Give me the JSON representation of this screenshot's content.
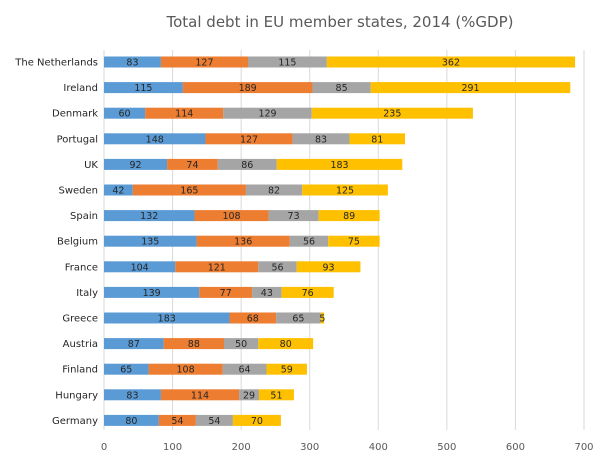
{
  "chart_data": {
    "type": "bar",
    "orientation": "horizontal",
    "stacked": true,
    "title": "Total debt in EU member states, 2014 (%GDP)",
    "xlabel": "",
    "ylabel": "",
    "xlim": [
      0,
      700
    ],
    "xticks": [
      0,
      100,
      200,
      300,
      400,
      500,
      600,
      700
    ],
    "grid": true,
    "legend": "none",
    "colors": [
      "#5b9bd5",
      "#ed7d31",
      "#a5a5a5",
      "#ffc000"
    ],
    "categories": [
      "The Netherlands",
      "Ireland",
      "Denmark",
      "Portugal",
      "UK",
      "Sweden",
      "Spain",
      "Belgium",
      "France",
      "Italy",
      "Greece",
      "Austria",
      "Finland",
      "Hungary",
      "Germany"
    ],
    "series": [
      {
        "values": [
          83,
          115,
          60,
          148,
          92,
          42,
          132,
          135,
          104,
          139,
          183,
          87,
          65,
          83,
          80
        ]
      },
      {
        "values": [
          127,
          189,
          114,
          127,
          74,
          165,
          108,
          136,
          121,
          77,
          68,
          88,
          108,
          114,
          54
        ]
      },
      {
        "values": [
          115,
          85,
          129,
          83,
          86,
          82,
          73,
          56,
          56,
          43,
          65,
          50,
          64,
          29,
          54
        ]
      },
      {
        "values": [
          362,
          291,
          235,
          81,
          183,
          125,
          89,
          75,
          93,
          76,
          5,
          80,
          59,
          51,
          70
        ]
      }
    ]
  }
}
